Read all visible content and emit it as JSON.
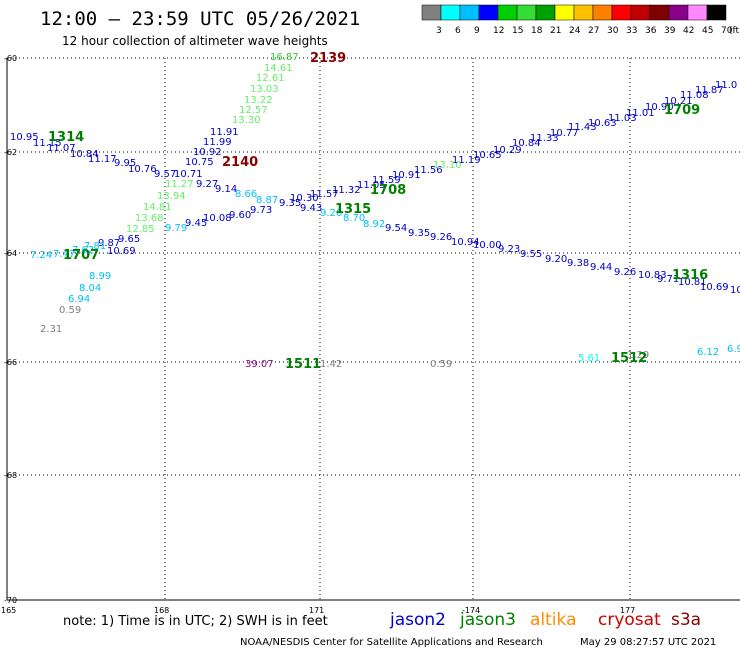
{
  "header": {
    "title": "12:00 — 23:59 UTC 05/26/2021",
    "subtitle": "12 hour collection of altimeter wave heights"
  },
  "colorbar": {
    "colors": [
      "#808080",
      "#00ffff",
      "#00bfff",
      "#0000ff",
      "#00d000",
      "#33dd33",
      "#00a000",
      "#ffff00",
      "#ffc000",
      "#ff8000",
      "#ff0000",
      "#c00000",
      "#800000",
      "#8b008b",
      "#ff88ff",
      "#000000"
    ],
    "labels": [
      "3",
      "6",
      "9",
      "12",
      "15",
      "18",
      "21",
      "24",
      "27",
      "30",
      "33",
      "36",
      "39",
      "42",
      "45",
      "70"
    ],
    "unit": "(ft)"
  },
  "axes": {
    "lat_labels": [
      "-60",
      "-62",
      "-64",
      "-66",
      "-68",
      "-70"
    ],
    "lon_labels": [
      "165",
      "168",
      "171",
      "-174",
      "177"
    ]
  },
  "footer": {
    "note": "note: 1) Time is in UTC; 2) SWH is in feet",
    "legend": [
      {
        "name": "jason2",
        "color": "#0000cc"
      },
      {
        "name": "jason3",
        "color": "#008000"
      },
      {
        "name": "altika",
        "color": "#ff8c00"
      },
      {
        "name": "cryosat",
        "color": "#cc0000"
      },
      {
        "name": "s3a",
        "color": "#880000"
      }
    ],
    "credit": "NOAA/NESDIS Center for Satellite Applications and Research",
    "generated": "May 29 08:27:57 UTC 2021"
  },
  "time_labels": [
    {
      "text": "2139",
      "color": "#880000"
    },
    {
      "text": "1314",
      "color": "#008000"
    },
    {
      "text": "2140",
      "color": "#880000"
    },
    {
      "text": "1709",
      "color": "#008000"
    },
    {
      "text": "1708",
      "color": "#008000"
    },
    {
      "text": "1315",
      "color": "#008000"
    },
    {
      "text": "1707",
      "color": "#008000"
    },
    {
      "text": "1316",
      "color": "#008000"
    },
    {
      "text": "1511",
      "color": "#008000"
    },
    {
      "text": "1512",
      "color": "#008000"
    }
  ],
  "swh_labels": [
    {
      "text": "16.87",
      "color": "#33cc33"
    },
    {
      "text": "14.61",
      "color": "#66ee66"
    },
    {
      "text": "12.61",
      "color": "#66ee66"
    },
    {
      "text": "13.03",
      "color": "#66ee66"
    },
    {
      "text": "13.22",
      "color": "#66ee66"
    },
    {
      "text": "12.57",
      "color": "#66ee66"
    },
    {
      "text": "13.30",
      "color": "#66ee66"
    },
    {
      "text": "11.91",
      "color": "#0000cc"
    },
    {
      "text": "11.99",
      "color": "#0000cc"
    },
    {
      "text": "10.92",
      "color": "#0000cc"
    },
    {
      "text": "10.75",
      "color": "#0000cc"
    },
    {
      "text": "10.71",
      "color": "#0000cc"
    },
    {
      "text": "9.57",
      "color": "#0000cc"
    },
    {
      "text": "11.27",
      "color": "#66ee66"
    },
    {
      "text": "9.27",
      "color": "#0000cc"
    },
    {
      "text": "9.14",
      "color": "#0000cc"
    },
    {
      "text": "13.94",
      "color": "#66ee66"
    },
    {
      "text": "14.81",
      "color": "#66ee66"
    },
    {
      "text": "13.68",
      "color": "#66ee66"
    },
    {
      "text": "12.85",
      "color": "#66ee66"
    },
    {
      "text": "9.79",
      "color": "#00bfff"
    },
    {
      "text": "9.45",
      "color": "#0000cc"
    },
    {
      "text": "10.08",
      "color": "#0000cc"
    },
    {
      "text": "9.60",
      "color": "#0000cc"
    },
    {
      "text": "9.73",
      "color": "#0000cc"
    },
    {
      "text": "10.95",
      "color": "#0000cc"
    },
    {
      "text": "11.15",
      "color": "#0000cc"
    },
    {
      "text": "11.07",
      "color": "#0000cc"
    },
    {
      "text": "10.84",
      "color": "#0000cc"
    },
    {
      "text": "11.17",
      "color": "#0000cc"
    },
    {
      "text": "9.95",
      "color": "#0000cc"
    },
    {
      "text": "10.76",
      "color": "#0000cc"
    },
    {
      "text": "8.66",
      "color": "#00bfff"
    },
    {
      "text": "8.87",
      "color": "#00bfff"
    },
    {
      "text": "9.35",
      "color": "#0000cc"
    },
    {
      "text": "10.30",
      "color": "#0000cc"
    },
    {
      "text": "9.43",
      "color": "#0000cc"
    },
    {
      "text": "11.57",
      "color": "#0000cc"
    },
    {
      "text": "11.32",
      "color": "#0000cc"
    },
    {
      "text": "11.05",
      "color": "#0000cc"
    },
    {
      "text": "11.59",
      "color": "#0000cc"
    },
    {
      "text": "10.91",
      "color": "#0000cc"
    },
    {
      "text": "11.56",
      "color": "#0000cc"
    },
    {
      "text": "13.10",
      "color": "#66ee66"
    },
    {
      "text": "11.19",
      "color": "#0000cc"
    },
    {
      "text": "10.65",
      "color": "#0000cc"
    },
    {
      "text": "10.29",
      "color": "#0000cc"
    },
    {
      "text": "10.84",
      "color": "#0000cc"
    },
    {
      "text": "11.33",
      "color": "#0000cc"
    },
    {
      "text": "10.77",
      "color": "#0000cc"
    },
    {
      "text": "11.43",
      "color": "#0000cc"
    },
    {
      "text": "10.63",
      "color": "#0000cc"
    },
    {
      "text": "11.03",
      "color": "#0000cc"
    },
    {
      "text": "11.01",
      "color": "#0000cc"
    },
    {
      "text": "10.90",
      "color": "#0000cc"
    },
    {
      "text": "10.21",
      "color": "#0000cc"
    },
    {
      "text": "11.08",
      "color": "#0000cc"
    },
    {
      "text": "11.87",
      "color": "#0000cc"
    },
    {
      "text": "11.0",
      "color": "#0000cc"
    },
    {
      "text": "9.20",
      "color": "#00bfff"
    },
    {
      "text": "8.70",
      "color": "#00bfff"
    },
    {
      "text": "8.92",
      "color": "#00bfff"
    },
    {
      "text": "9.54",
      "color": "#0000cc"
    },
    {
      "text": "9.35",
      "color": "#0000cc"
    },
    {
      "text": "9.26",
      "color": "#0000cc"
    },
    {
      "text": "10.94",
      "color": "#0000cc"
    },
    {
      "text": "10.00",
      "color": "#0000cc"
    },
    {
      "text": "9.23",
      "color": "#0000cc"
    },
    {
      "text": "9.55",
      "color": "#0000cc"
    },
    {
      "text": "9.20",
      "color": "#0000cc"
    },
    {
      "text": "9.38",
      "color": "#0000cc"
    },
    {
      "text": "9.44",
      "color": "#0000cc"
    },
    {
      "text": "9.26",
      "color": "#0000cc"
    },
    {
      "text": "10.83",
      "color": "#0000cc"
    },
    {
      "text": "9.71",
      "color": "#0000cc"
    },
    {
      "text": "10.81",
      "color": "#0000cc"
    },
    {
      "text": "10.69",
      "color": "#0000cc"
    },
    {
      "text": "10",
      "color": "#0000cc"
    },
    {
      "text": "9.65",
      "color": "#0000cc"
    },
    {
      "text": "10.69",
      "color": "#0000cc"
    },
    {
      "text": "9.87",
      "color": "#0000cc"
    },
    {
      "text": "7.81",
      "color": "#00bfff"
    },
    {
      "text": "7.62",
      "color": "#00bfff"
    },
    {
      "text": "7.47",
      "color": "#00bfff"
    },
    {
      "text": "7.24",
      "color": "#00bfff"
    },
    {
      "text": "8.99",
      "color": "#00bfff"
    },
    {
      "text": "8.04",
      "color": "#00bfff"
    },
    {
      "text": "6.94",
      "color": "#00bfff"
    },
    {
      "text": "0.59",
      "color": "#808080"
    },
    {
      "text": "2.31",
      "color": "#808080"
    },
    {
      "text": "39.07",
      "color": "#8b008b"
    },
    {
      "text": "1.42",
      "color": "#808080"
    },
    {
      "text": "0.59",
      "color": "#808080"
    },
    {
      "text": "5.61",
      "color": "#00ffff"
    },
    {
      "text": "1.29",
      "color": "#808080"
    },
    {
      "text": "6.12",
      "color": "#00bfff"
    },
    {
      "text": "6.9",
      "color": "#00bfff"
    }
  ]
}
